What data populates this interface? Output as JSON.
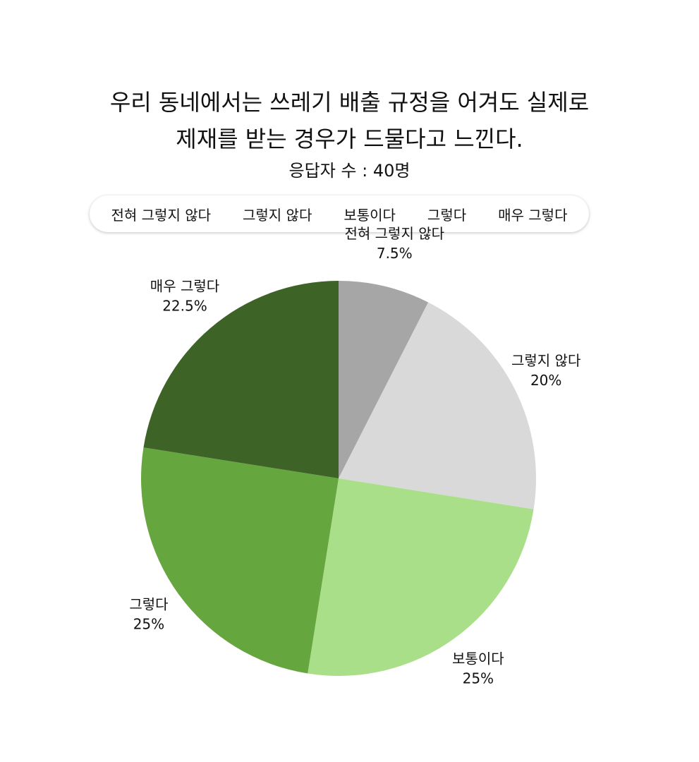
{
  "chart_data": {
    "type": "pie",
    "title": [
      "우리 동네에서는 쓰레기 배출 규정을 어겨도 실제로",
      "제재를 받는 경우가 드물다고 느낀다."
    ],
    "subtitle": "응답자 수 : 40명",
    "categories": [
      "전혀 그렇지 않다",
      "그렇지 않다",
      "보통이다",
      "그렇다",
      "매우 그렇다"
    ],
    "values": [
      7.5,
      20,
      25,
      25,
      22.5
    ],
    "value_labels": [
      "7.5%",
      "20%",
      "25%",
      "25%",
      "22.5%"
    ],
    "colors": [
      "#a6a6a6",
      "#d9d9d9",
      "#a9df88",
      "#66a63f",
      "#3e6327"
    ],
    "legend": "top"
  }
}
